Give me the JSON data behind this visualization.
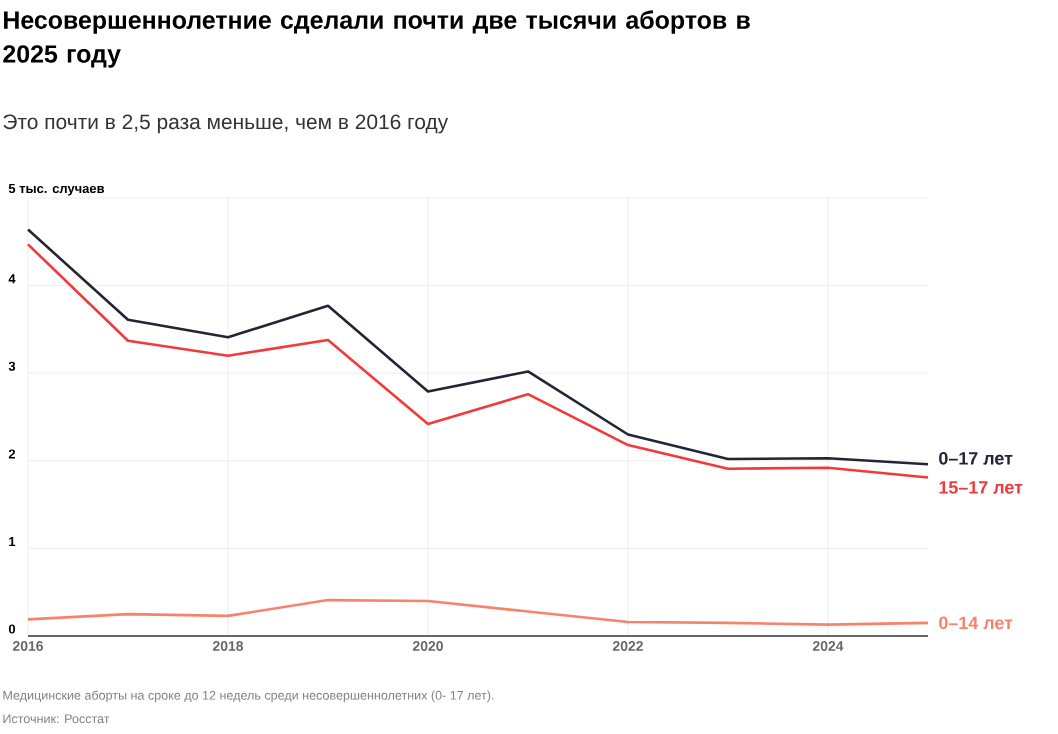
{
  "chart_data": {
    "type": "line",
    "title": "Несовершеннолетние сделали почти две тысячи абортов в 2025 году",
    "subtitle": "Это почти в 2,5 раза меньше, чем в 2016 году",
    "x": [
      2016,
      2017,
      2018,
      2019,
      2020,
      2021,
      2022,
      2023,
      2024,
      2025
    ],
    "series": [
      {
        "name": "0–17 лет",
        "color": "#232536",
        "values": [
          4.64,
          3.61,
          3.41,
          3.77,
          2.79,
          3.02,
          2.3,
          2.02,
          2.03,
          1.96
        ]
      },
      {
        "name": "15–17 лет",
        "color": "#f23a3a",
        "values": [
          4.47,
          3.37,
          3.2,
          3.38,
          2.42,
          2.76,
          2.18,
          1.91,
          1.92,
          1.81
        ]
      },
      {
        "name": "0–14 лет",
        "color": "#f9826a",
        "values": [
          0.19,
          0.25,
          0.23,
          0.41,
          0.4,
          0.28,
          0.16,
          0.15,
          0.13,
          0.15
        ]
      }
    ],
    "xlim": [
      2016,
      2025
    ],
    "ylim": [
      0,
      5
    ],
    "xticks": [
      2016,
      2018,
      2020,
      2022,
      2024
    ],
    "yticks": [
      0,
      1,
      2,
      3,
      4,
      {
        "value": 5,
        "label": "5 тыс. случаев"
      }
    ],
    "grid": true,
    "legend": false,
    "marker": "none",
    "line_style": "solid",
    "annotations": [
      "Медицинские аборты на сроке до 12 недель среди несовершеннолетних (0- 17 лет).",
      "Источник: Росстат"
    ]
  }
}
